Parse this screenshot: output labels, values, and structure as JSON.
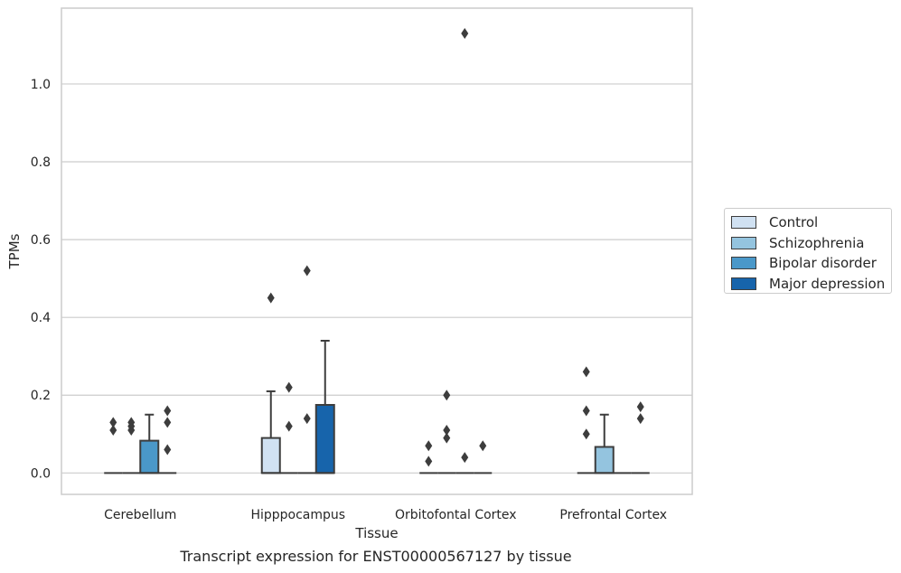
{
  "chart_data": {
    "type": "box",
    "title": "Transcript expression for ENST00000567127 by tissue",
    "xlabel": "Tissue",
    "ylabel": "TPMs",
    "ylim": [
      -0.055,
      1.195
    ],
    "yticks": [
      0.0,
      0.2,
      0.4,
      0.6,
      0.8,
      1.0
    ],
    "ytick_labels": [
      "0.0",
      "0.2",
      "0.4",
      "0.6",
      "0.8",
      "1.0"
    ],
    "categories": [
      "Cerebellum",
      "Hipppocampus",
      "Orbitofontal Cortex",
      "Prefrontal Cortex"
    ],
    "grid": true,
    "legend_position": "right",
    "series": [
      {
        "name": "Control",
        "color": "#d0e1f2",
        "boxes": [
          {
            "q1": 0,
            "median": 0,
            "q3": 0,
            "whisker_low": 0,
            "whisker_high": 0,
            "outliers": [
              0.11,
              0.13
            ]
          },
          {
            "q1": 0,
            "median": 0,
            "q3": 0.09,
            "whisker_low": 0,
            "whisker_high": 0.21,
            "outliers": [
              0.45
            ]
          },
          {
            "q1": 0,
            "median": 0,
            "q3": 0,
            "whisker_low": 0,
            "whisker_high": 0,
            "outliers": [
              0.03,
              0.07
            ]
          },
          {
            "q1": 0,
            "median": 0,
            "q3": 0,
            "whisker_low": 0,
            "whisker_high": 0,
            "outliers": [
              0.1,
              0.16,
              0.26
            ]
          }
        ]
      },
      {
        "name": "Schizophrenia",
        "color": "#94c4df",
        "boxes": [
          {
            "q1": 0,
            "median": 0,
            "q3": 0,
            "whisker_low": 0,
            "whisker_high": 0,
            "outliers": [
              0.11,
              0.12,
              0.13
            ]
          },
          {
            "q1": 0,
            "median": 0,
            "q3": 0,
            "whisker_low": 0,
            "whisker_high": 0,
            "outliers": [
              0.12,
              0.22
            ]
          },
          {
            "q1": 0,
            "median": 0,
            "q3": 0,
            "whisker_low": 0,
            "whisker_high": 0,
            "outliers": [
              0.09,
              0.11,
              0.2
            ]
          },
          {
            "q1": 0,
            "median": 0,
            "q3": 0.067,
            "whisker_low": 0,
            "whisker_high": 0.15,
            "outliers": []
          }
        ]
      },
      {
        "name": "Bipolar disorder",
        "color": "#4a98c9",
        "boxes": [
          {
            "q1": 0,
            "median": 0,
            "q3": 0.083,
            "whisker_low": 0,
            "whisker_high": 0.15,
            "outliers": []
          },
          {
            "q1": 0,
            "median": 0,
            "q3": 0,
            "whisker_low": 0,
            "whisker_high": 0,
            "outliers": [
              0.14,
              0.52
            ]
          },
          {
            "q1": 0,
            "median": 0,
            "q3": 0,
            "whisker_low": 0,
            "whisker_high": 0,
            "outliers": [
              0.04,
              1.13
            ]
          },
          {
            "q1": 0,
            "median": 0,
            "q3": 0,
            "whisker_low": 0,
            "whisker_high": 0,
            "outliers": []
          }
        ]
      },
      {
        "name": "Major depression",
        "color": "#1764ab",
        "boxes": [
          {
            "q1": 0,
            "median": 0,
            "q3": 0,
            "whisker_low": 0,
            "whisker_high": 0,
            "outliers": [
              0.06,
              0.13,
              0.16
            ]
          },
          {
            "q1": 0,
            "median": 0,
            "q3": 0.175,
            "whisker_low": 0,
            "whisker_high": 0.34,
            "outliers": []
          },
          {
            "q1": 0,
            "median": 0,
            "q3": 0,
            "whisker_low": 0,
            "whisker_high": 0,
            "outliers": [
              0.07
            ]
          },
          {
            "q1": 0,
            "median": 0,
            "q3": 0,
            "whisker_low": 0,
            "whisker_high": 0,
            "outliers": [
              0.14,
              0.17
            ]
          }
        ]
      }
    ]
  }
}
